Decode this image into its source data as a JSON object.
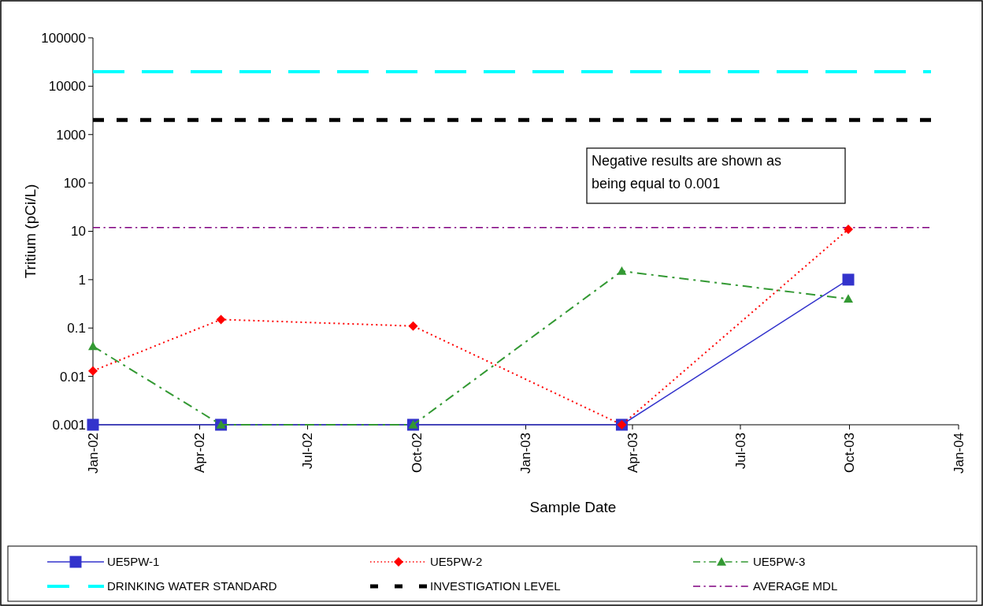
{
  "chart_data": {
    "type": "line",
    "xlabel": "Sample Date",
    "ylabel": "Tritium (pCi/L)",
    "log": "y",
    "grid": false,
    "legend": "bottom",
    "xlim": [
      "2002-01-01",
      "2004-01-01"
    ],
    "xticks": [
      {
        "value": "2002-01-01",
        "label": "Jan-02"
      },
      {
        "value": "2002-04-01",
        "label": "Apr-02"
      },
      {
        "value": "2002-07-01",
        "label": "Jul-02"
      },
      {
        "value": "2002-10-01",
        "label": "Oct-02"
      },
      {
        "value": "2003-01-01",
        "label": "Jan-03"
      },
      {
        "value": "2003-04-01",
        "label": "Apr-03"
      },
      {
        "value": "2003-07-01",
        "label": "Jul-03"
      },
      {
        "value": "2003-10-01",
        "label": "Oct-03"
      },
      {
        "value": "2004-01-01",
        "label": "Jan-04"
      }
    ],
    "ylim": [
      0.001,
      100000
    ],
    "yticks": [
      0.001,
      0.01,
      0.1,
      1,
      10,
      100,
      1000,
      10000,
      100000
    ],
    "x": [
      "2002-01-01",
      "2002-04-19",
      "2002-09-28",
      "2003-03-23",
      "2003-09-30"
    ],
    "series": [
      {
        "name": "UE5PW-1",
        "color": "#3333cc",
        "marker": "square",
        "line_style": "solid",
        "values": [
          0.001,
          0.001,
          0.001,
          0.001,
          1.0
        ]
      },
      {
        "name": "UE5PW-2",
        "color": "#ff0000",
        "marker": "diamond",
        "line_style": "dotted",
        "values": [
          0.013,
          0.15,
          0.11,
          0.001,
          11
        ]
      },
      {
        "name": "UE5PW-3",
        "color": "#339933",
        "marker": "triangle",
        "line_style": "dashdot",
        "values": [
          0.042,
          0.001,
          0.001,
          1.5,
          0.4
        ]
      }
    ],
    "ref_lines": [
      {
        "axis": "y",
        "value": 20000,
        "label": "DRINKING WATER STANDARD",
        "color": "#00ffff",
        "line_style": "dashed"
      },
      {
        "axis": "y",
        "value": 2000,
        "label": "INVESTIGATION LEVEL",
        "color": "#000000",
        "line_style": "dashed"
      },
      {
        "axis": "y",
        "value": 12,
        "label": "AVERAGE MDL",
        "color": "#800080",
        "line_style": "dashdot"
      }
    ],
    "annotations": [
      "Negative results are shown as being equal to 0.001"
    ]
  }
}
